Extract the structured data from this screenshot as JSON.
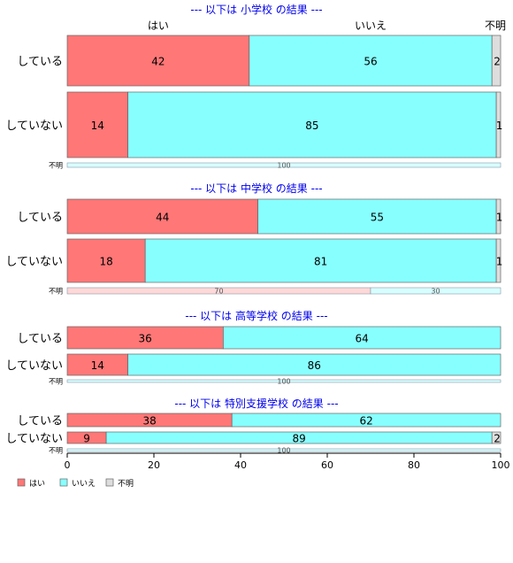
{
  "chart_data": {
    "type": "bar",
    "orientation": "horizontal",
    "stacked": true,
    "top_labels": [
      "はい",
      "いいえ",
      "不明"
    ],
    "legend": {
      "position": "bottom-left",
      "items": [
        {
          "label": "はい",
          "color": "#FF7777"
        },
        {
          "label": "いいえ",
          "color": "#88FFFF"
        },
        {
          "label": "不明",
          "color": "#DDDDDD"
        }
      ]
    },
    "xlim": [
      0,
      100
    ],
    "xticks": [
      0,
      20,
      40,
      60,
      80,
      100
    ],
    "panels": [
      {
        "title": "--- 以下は 小学校 の結果 ---",
        "rows": [
          {
            "label": "している",
            "values": [
              42,
              56,
              2
            ]
          },
          {
            "label": "していない",
            "values": [
              14,
              85,
              1
            ]
          },
          {
            "label": "不明",
            "values": [
              0,
              100,
              0
            ]
          }
        ]
      },
      {
        "title": "--- 以下は 中学校 の結果 ---",
        "rows": [
          {
            "label": "している",
            "values": [
              44,
              55,
              1
            ]
          },
          {
            "label": "していない",
            "values": [
              18,
              81,
              1
            ]
          },
          {
            "label": "不明",
            "values": [
              70,
              30,
              0
            ]
          }
        ]
      },
      {
        "title": "--- 以下は 高等学校 の結果 ---",
        "rows": [
          {
            "label": "している",
            "values": [
              36,
              64,
              0
            ]
          },
          {
            "label": "していない",
            "values": [
              14,
              86,
              0
            ]
          },
          {
            "label": "不明",
            "values": [
              0,
              100,
              0
            ]
          }
        ]
      },
      {
        "title": "--- 以下は 特別支援学校 の結果 ---",
        "rows": [
          {
            "label": "している",
            "values": [
              38,
              62,
              0
            ]
          },
          {
            "label": "していない",
            "values": [
              9,
              89,
              2
            ]
          },
          {
            "label": "不明",
            "values": [
              0,
              100,
              0
            ]
          }
        ]
      }
    ]
  }
}
